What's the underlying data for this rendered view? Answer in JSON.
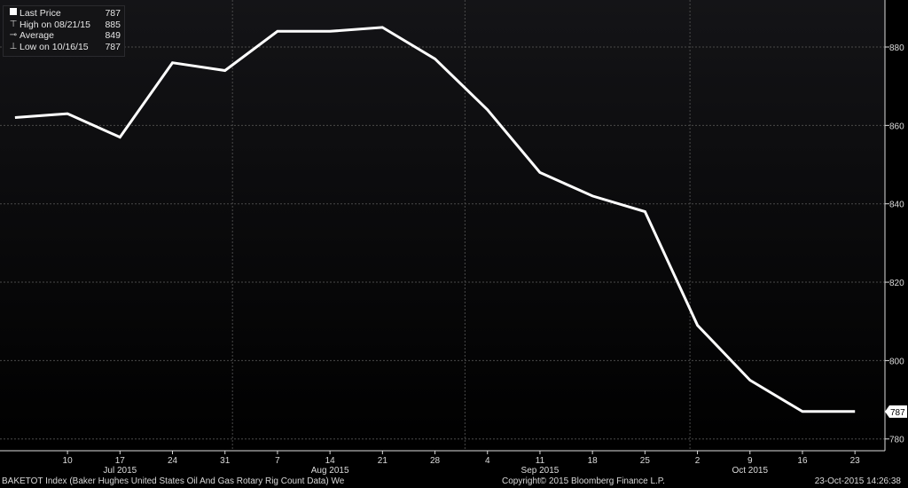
{
  "chart_data": {
    "type": "line",
    "series": [
      {
        "name": "Last Price",
        "x": [
          "2015-07-03",
          "2015-07-10",
          "2015-07-17",
          "2015-07-24",
          "2015-07-31",
          "2015-08-07",
          "2015-08-14",
          "2015-08-21",
          "2015-08-28",
          "2015-09-04",
          "2015-09-11",
          "2015-09-18",
          "2015-09-25",
          "2015-10-02",
          "2015-10-09",
          "2015-10-16",
          "2015-10-23"
        ],
        "values": [
          862,
          863,
          857,
          876,
          874,
          884,
          884,
          885,
          877,
          864,
          848,
          842,
          838,
          809,
          795,
          787,
          787
        ]
      }
    ],
    "x_ticks": [
      {
        "date": "2015-07-10",
        "label": "10"
      },
      {
        "date": "2015-07-17",
        "label": "17"
      },
      {
        "date": "2015-07-24",
        "label": "24"
      },
      {
        "date": "2015-07-31",
        "label": "31"
      },
      {
        "date": "2015-08-07",
        "label": "7"
      },
      {
        "date": "2015-08-14",
        "label": "14"
      },
      {
        "date": "2015-08-21",
        "label": "21"
      },
      {
        "date": "2015-08-28",
        "label": "28"
      },
      {
        "date": "2015-09-04",
        "label": "4"
      },
      {
        "date": "2015-09-11",
        "label": "11"
      },
      {
        "date": "2015-09-18",
        "label": "18"
      },
      {
        "date": "2015-09-25",
        "label": "25"
      },
      {
        "date": "2015-10-02",
        "label": "2"
      },
      {
        "date": "2015-10-09",
        "label": "9"
      },
      {
        "date": "2015-10-16",
        "label": "16"
      },
      {
        "date": "2015-10-23",
        "label": "23"
      }
    ],
    "month_labels": [
      {
        "date": "2015-07-17",
        "label": "Jul 2015"
      },
      {
        "date": "2015-08-14",
        "label": "Aug 2015"
      },
      {
        "date": "2015-09-11",
        "label": "Sep 2015"
      },
      {
        "date": "2015-10-09",
        "label": "Oct 2015"
      }
    ],
    "month_starts": [
      "2015-08-01",
      "2015-09-01",
      "2015-10-01"
    ],
    "xlim": [
      "2015-07-01",
      "2015-10-27"
    ],
    "y_ticks": [
      780,
      800,
      820,
      840,
      860,
      880
    ],
    "ylim": [
      777,
      892
    ],
    "last_value_label": "787",
    "grid": true,
    "legend_position": "top-left",
    "colors": {
      "background": "#000000",
      "plot_top": "#141417",
      "plot_bottom": "#000000",
      "line": "#ffffff",
      "grid": "#4a4a4a",
      "axis_text": "#dcdcdc"
    }
  },
  "legend": [
    {
      "icon": "square-swatch",
      "label": "Last Price",
      "value": "787"
    },
    {
      "icon": "high-marker",
      "label": "High on 08/21/15",
      "value": "885"
    },
    {
      "icon": "average-marker",
      "label": "Average",
      "value": "849"
    },
    {
      "icon": "low-marker",
      "label": "Low on 10/16/15",
      "value": "787"
    }
  ],
  "footer": {
    "left": "BAKETOT Index (Baker Hughes United States Oil And Gas Rotary Rig Count Data)  We",
    "center": "Copyright© 2015 Bloomberg Finance L.P.",
    "right": "23-Oct-2015 14:26:38"
  }
}
